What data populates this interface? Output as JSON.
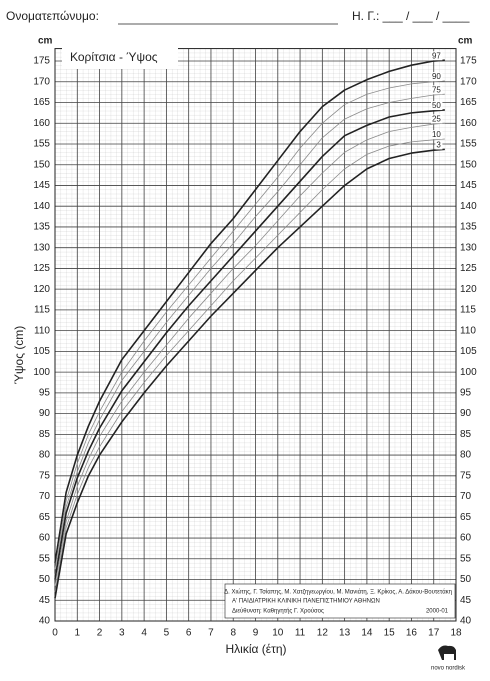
{
  "header": {
    "name_label": "Ονοματεπώνυμο:",
    "date_label": "Η. Γ.: ___ / ___ / ____"
  },
  "chart_data": {
    "type": "line",
    "title": "Κορίτσια - Ύψος",
    "y_unit": "cm",
    "xlabel": "Ηλικία (έτη)",
    "ylabel": "Ύψος (cm)",
    "x": [
      0,
      0.5,
      1,
      1.5,
      2,
      3,
      4,
      5,
      6,
      7,
      8,
      9,
      10,
      11,
      12,
      13,
      14,
      15,
      16,
      17,
      17.5
    ],
    "series": [
      {
        "name": "97",
        "color": "#222222",
        "values": [
          54,
          71,
          80,
          87,
          93,
          103,
          110,
          117,
          124,
          131,
          137,
          144,
          151,
          158,
          164,
          168,
          170.5,
          172.5,
          174,
          175,
          175.2
        ]
      },
      {
        "name": "90",
        "color": "#8a8a8a",
        "values": [
          52.5,
          69,
          78,
          85,
          90.5,
          100,
          107.5,
          114.5,
          121,
          127.5,
          134,
          140.5,
          147,
          154,
          160,
          164.5,
          167,
          168.5,
          169.5,
          170,
          170.2
        ]
      },
      {
        "name": "75",
        "color": "#8a8a8a",
        "values": [
          51,
          67.5,
          76,
          83,
          88.5,
          98,
          105,
          112,
          118.5,
          125,
          131,
          137.5,
          143.5,
          150,
          156.5,
          161,
          163.5,
          165,
          166,
          166.8,
          167
        ]
      },
      {
        "name": "50",
        "color": "#222222",
        "values": [
          50,
          66,
          74.5,
          81,
          86.5,
          95.5,
          102.5,
          109.5,
          116,
          122,
          128,
          134,
          140,
          146,
          152,
          157,
          159.5,
          161.5,
          162.5,
          163,
          163.2
        ]
      },
      {
        "name": "25",
        "color": "#8a8a8a",
        "values": [
          48.5,
          64,
          72.5,
          79,
          84.5,
          93,
          100,
          106.5,
          113,
          119,
          125,
          130.5,
          136.5,
          142.5,
          148,
          153,
          156,
          158,
          159,
          159.8,
          160
        ]
      },
      {
        "name": "10",
        "color": "#8a8a8a",
        "values": [
          47,
          62.5,
          70.5,
          77,
          82,
          90.5,
          97.5,
          104,
          110,
          116,
          122,
          127.5,
          133,
          138.5,
          144,
          149,
          152.5,
          154.5,
          155.5,
          156,
          156.2
        ]
      },
      {
        "name": "3",
        "color": "#222222",
        "values": [
          45.5,
          61,
          68.5,
          75,
          80,
          88,
          95,
          101.5,
          107.5,
          113.5,
          119,
          124.5,
          130,
          135,
          140,
          145,
          149,
          151.5,
          152.8,
          153.5,
          153.7
        ]
      }
    ],
    "xlim": [
      0,
      18
    ],
    "xticks": [
      0,
      1,
      2,
      3,
      4,
      5,
      6,
      7,
      8,
      9,
      10,
      11,
      12,
      13,
      14,
      15,
      16,
      17,
      18
    ],
    "ylim": [
      40,
      178
    ],
    "yticks": [
      40,
      45,
      50,
      55,
      60,
      65,
      70,
      75,
      80,
      85,
      90,
      95,
      100,
      105,
      110,
      115,
      120,
      125,
      130,
      135,
      140,
      145,
      150,
      155,
      160,
      165,
      170,
      175
    ],
    "grid": true
  },
  "credits": {
    "authors": "Δ. Χιώτης, Γ. Τσίαπης, Μ. Χατζηγεωργίου, Μ. Μανιάτη, Ξ. Κρίκος, Α. Δάκου-Βουτετάκη",
    "clinic": "Α' ΠΑΙΔΙΑΤΡΙΚΗ ΚΛΙΝΙΚΗ ΠΑΝΕΠΙΣΤΗΜΙΟΥ ΑΘΗΝΩΝ",
    "director": "Διεύθυνση: Καθηγητής Γ. Χρούσος",
    "edition": "2000-01"
  },
  "logo": "novo nordisk"
}
